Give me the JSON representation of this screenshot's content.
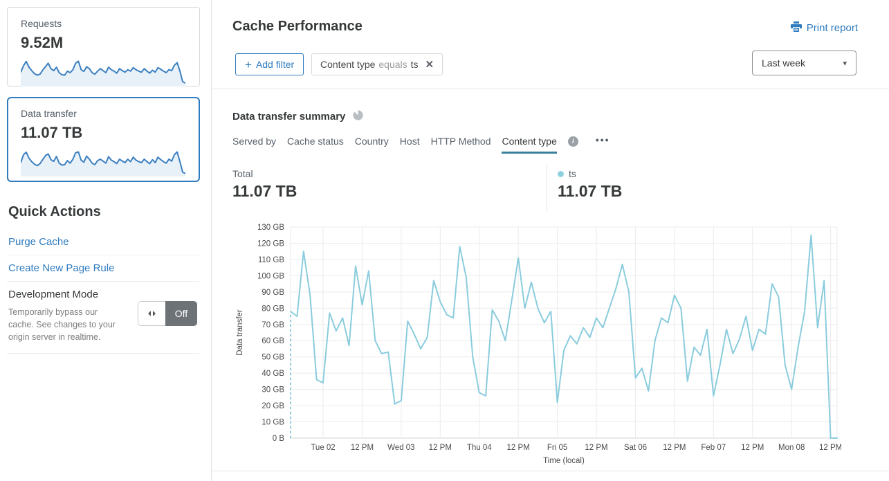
{
  "colors": {
    "accent_blue": "#2f7bbf",
    "tab_underline": "#38809c",
    "chart_line": "#8accdd",
    "legend_dot": "#8fd0df",
    "spark_line": "#3b7fc0",
    "spark_fill": "#e9f1f8",
    "toggle_off_bg": "#6d7277",
    "grid": "#ebebeb"
  },
  "icons": {
    "plus": "+",
    "close": "✕",
    "caret": "▾",
    "more": "•••",
    "info": "i"
  },
  "sidebar": {
    "cards": [
      {
        "label": "Requests",
        "value": "9.52M",
        "sparkline_shape": [
          52,
          78,
          95,
          72,
          58,
          46,
          40,
          44,
          60,
          74,
          88,
          66,
          58,
          72,
          50,
          42,
          40,
          56,
          50,
          62,
          88,
          96,
          62,
          55,
          74,
          66,
          50,
          44,
          56,
          66,
          58,
          50,
          72,
          62,
          56,
          48,
          66,
          58,
          52,
          62,
          56,
          70,
          62,
          56,
          52,
          66,
          56,
          48,
          60,
          52,
          70,
          64,
          56,
          50,
          62,
          58,
          80,
          90,
          56,
          14,
          8
        ]
      },
      {
        "label": "Data transfer",
        "value": "11.07 TB",
        "selected": true,
        "sparkline_shape": [
          50,
          82,
          92,
          68,
          54,
          44,
          38,
          46,
          62,
          78,
          85,
          62,
          55,
          75,
          48,
          40,
          42,
          58,
          48,
          64,
          90,
          93,
          60,
          52,
          76,
          64,
          48,
          42,
          58,
          64,
          56,
          48,
          74,
          60,
          54,
          46,
          64,
          56,
          50,
          64,
          54,
          72,
          60,
          54,
          50,
          64,
          54,
          46,
          62,
          50,
          72,
          62,
          54,
          48,
          64,
          56,
          82,
          93,
          54,
          12,
          6
        ]
      }
    ],
    "quick_actions": {
      "title": "Quick Actions",
      "links": [
        "Purge Cache",
        "Create New Page Rule"
      ],
      "dev_mode": {
        "title": "Development Mode",
        "description": "Temporarily bypass our cache. See changes to your origin server in realtime.",
        "toggle_state": "Off"
      }
    }
  },
  "header": {
    "title": "Cache Performance",
    "print_label": "Print report"
  },
  "filters": {
    "add_label": "Add filter",
    "chip": {
      "field": "Content type",
      "operator": "equals",
      "value": "ts"
    },
    "range_label": "Last week"
  },
  "summary": {
    "title": "Data transfer summary",
    "tabs": [
      {
        "label": "Served by"
      },
      {
        "label": "Cache status"
      },
      {
        "label": "Country"
      },
      {
        "label": "Host"
      },
      {
        "label": "HTTP Method"
      },
      {
        "label": "Content type",
        "active": true,
        "info": true
      }
    ],
    "total_label": "Total",
    "total_value": "11.07 TB",
    "legend": {
      "name": "ts",
      "value": "11.07 TB"
    }
  },
  "chart_data": {
    "type": "line",
    "title": "Data transfer summary",
    "xlabel": "Time (local)",
    "ylabel": "Data transfer",
    "ylim": [
      0,
      130
    ],
    "y_tick_step": 10,
    "y_tick_labels": [
      "0 B",
      "10 GB",
      "20 GB",
      "30 GB",
      "40 GB",
      "50 GB",
      "60 GB",
      "70 GB",
      "80 GB",
      "90 GB",
      "100 GB",
      "110 GB",
      "120 GB",
      "130 GB"
    ],
    "x_tick_labels": [
      "Tue 02",
      "12 PM",
      "Wed 03",
      "12 PM",
      "Thu 04",
      "12 PM",
      "Fri 05",
      "12 PM",
      "Sat 06",
      "12 PM",
      "Feb 07",
      "12 PM",
      "Mon 08",
      "12 PM"
    ],
    "x_first_tick_index": 5,
    "x_tick_every": 6,
    "grid": true,
    "start_dashed_marker": true,
    "series": [
      {
        "name": "ts",
        "unit": "GB",
        "color": "#8accdd",
        "values": [
          78,
          75,
          115,
          88,
          36,
          34,
          77,
          66,
          74,
          57,
          106,
          82,
          103,
          60,
          52,
          53,
          21,
          23,
          72,
          64,
          55,
          62,
          97,
          84,
          76,
          74,
          118,
          99,
          50,
          28,
          26,
          79,
          72,
          60,
          85,
          111,
          80,
          96,
          80,
          71,
          78,
          22,
          54,
          63,
          58,
          68,
          62,
          74,
          68,
          80,
          92,
          107,
          90,
          37,
          43,
          29,
          60,
          74,
          71,
          88,
          80,
          35,
          56,
          51,
          67,
          26,
          45,
          67,
          52,
          61,
          75,
          54,
          67,
          64,
          95,
          87,
          45,
          30,
          56,
          78,
          125,
          68,
          97,
          0,
          0
        ]
      }
    ]
  }
}
